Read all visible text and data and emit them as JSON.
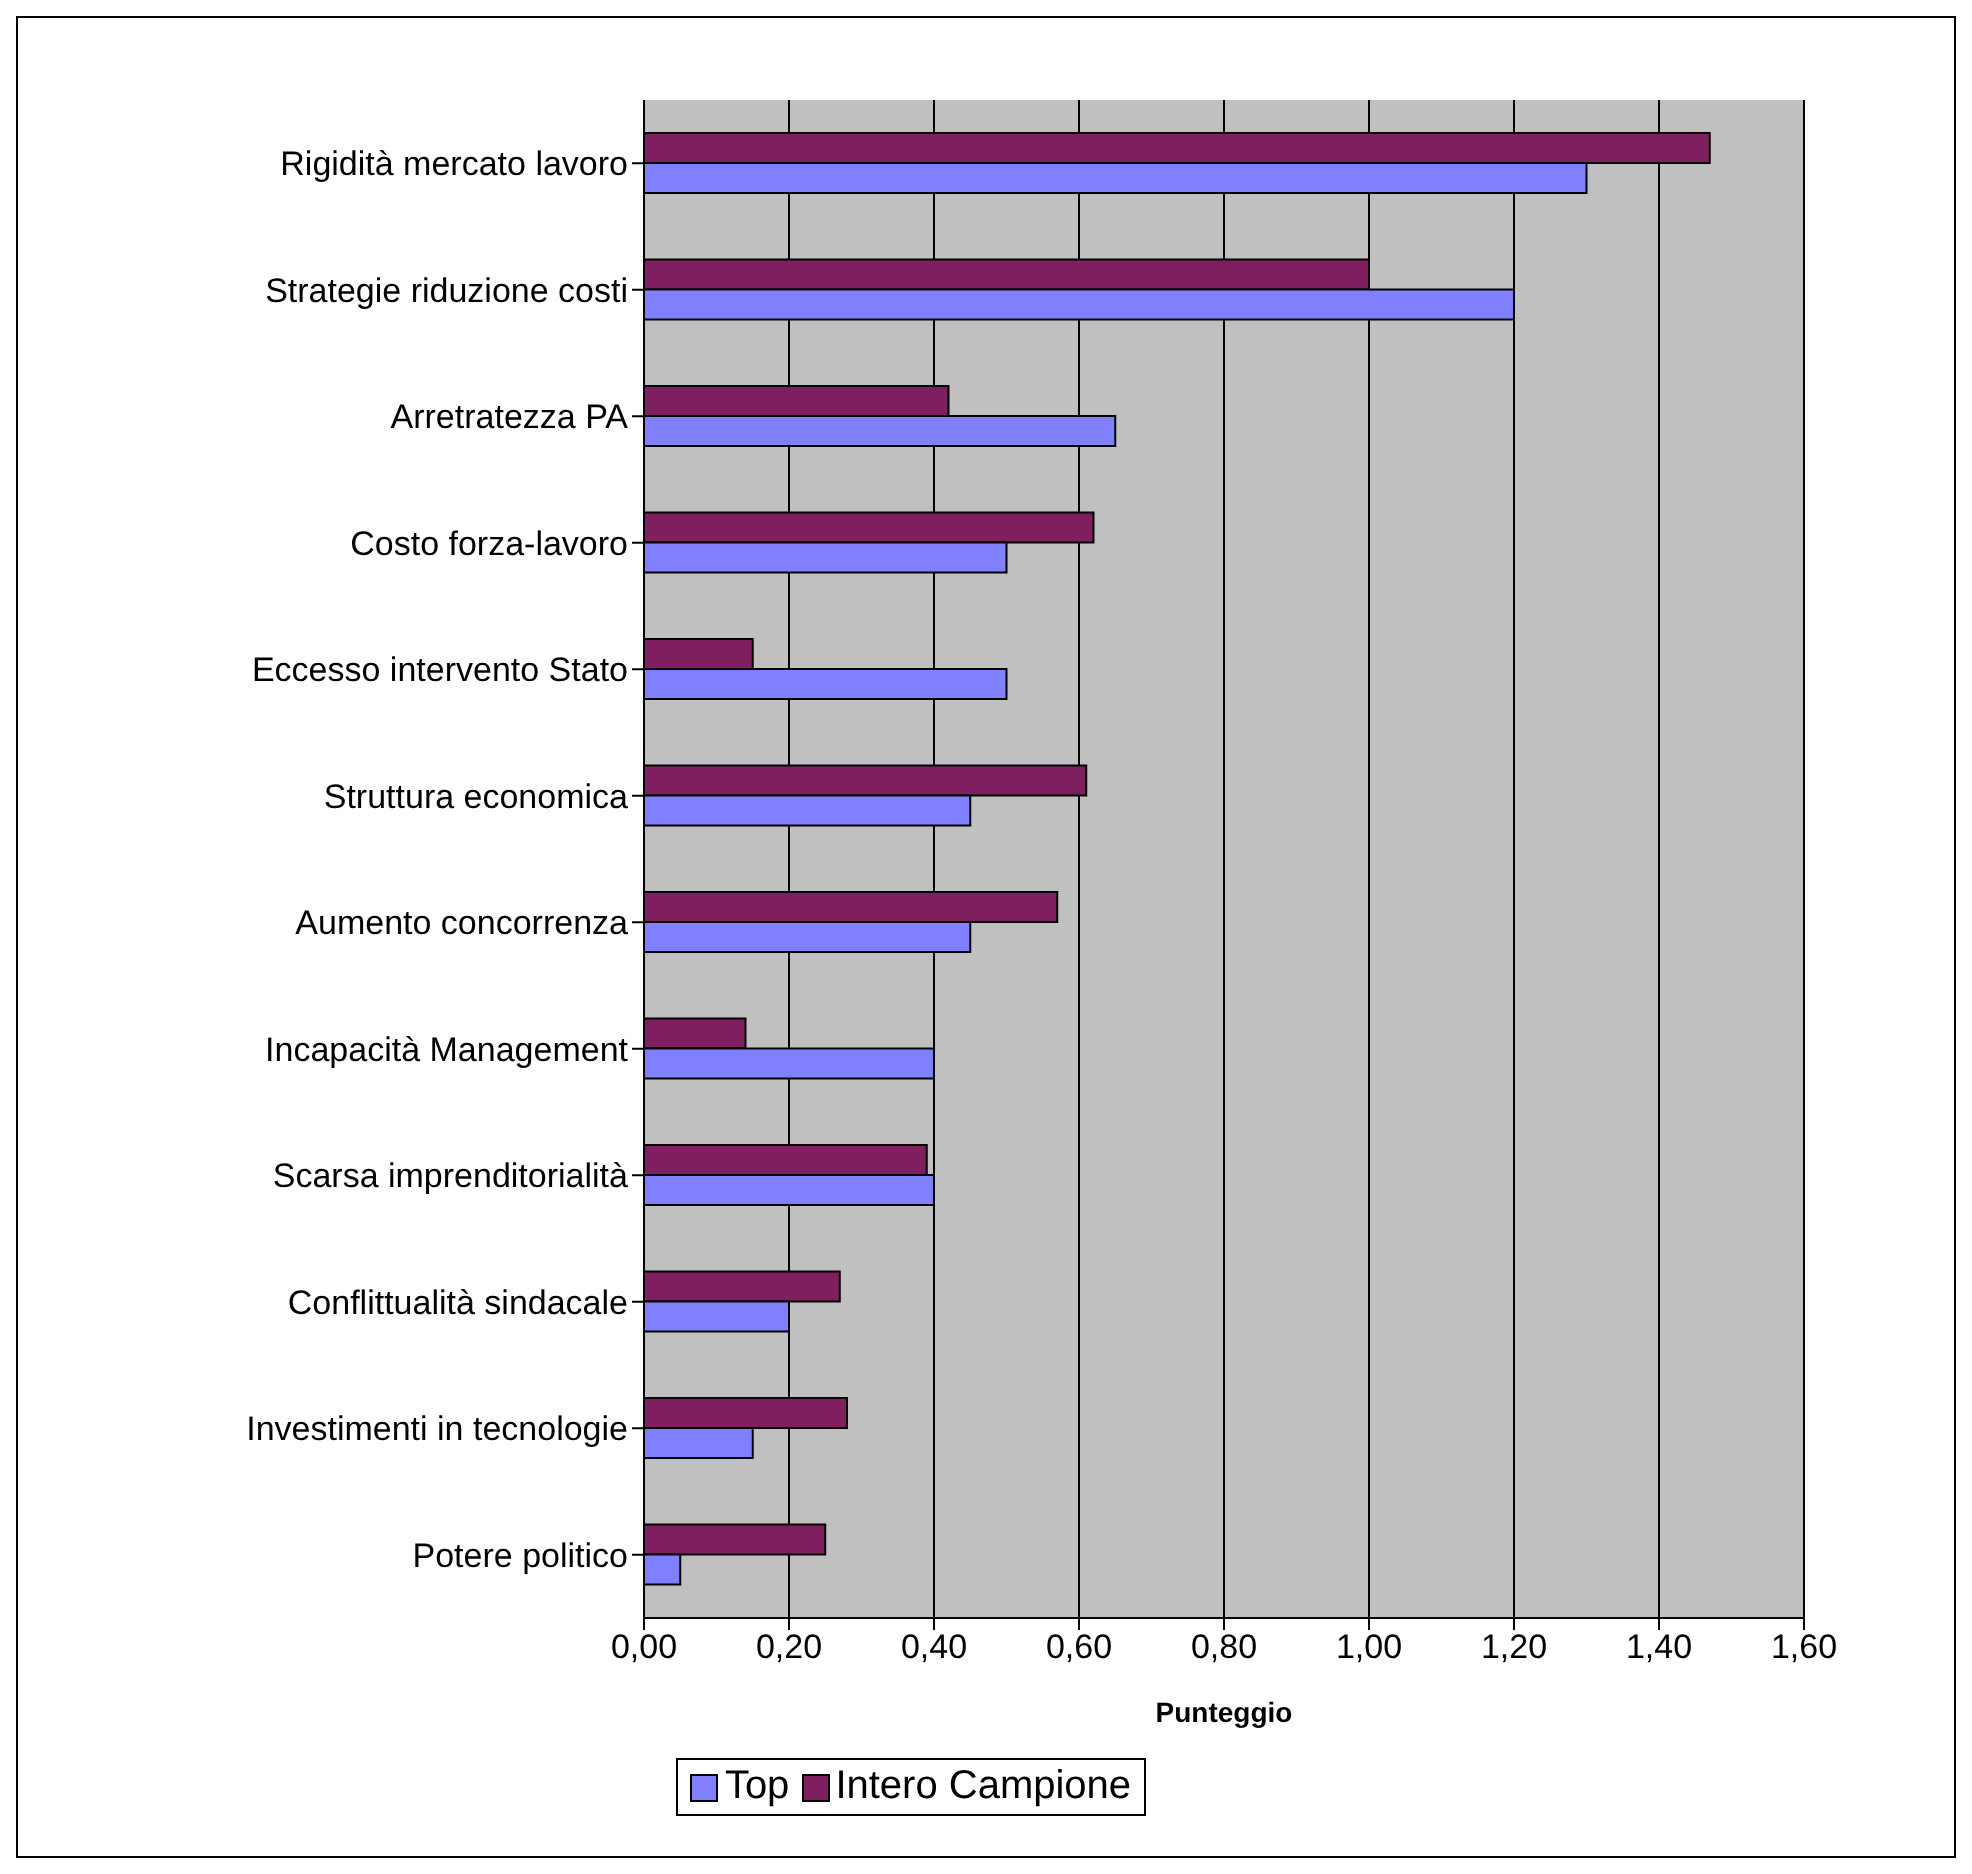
{
  "chart_data": {
    "type": "bar",
    "orientation": "horizontal",
    "xlabel": "Punteggio",
    "categories": [
      "Rigidità mercato lavoro",
      "Strategie riduzione costi",
      "Arretratezza PA",
      "Costo forza-lavoro",
      "Eccesso intervento Stato",
      "Struttura economica",
      "Aumento concorrenza",
      "Incapacità Management",
      "Scarsa imprenditorialità",
      "Conflittualità sindacale",
      "Investimenti in tecnologie",
      "Potere politico"
    ],
    "series": [
      {
        "name": "Top",
        "color": "#8080ff",
        "values": [
          1.3,
          1.2,
          0.65,
          0.5,
          0.5,
          0.45,
          0.45,
          0.4,
          0.4,
          0.2,
          0.15,
          0.05
        ]
      },
      {
        "name": "Intero Campione",
        "color": "#7f1f5f",
        "values": [
          1.47,
          1.0,
          0.42,
          0.62,
          0.15,
          0.61,
          0.57,
          0.14,
          0.39,
          0.27,
          0.28,
          0.25
        ]
      }
    ],
    "xlim": [
      0,
      1.6
    ],
    "xticks": [
      {
        "value": 0,
        "label": "0,00"
      },
      {
        "value": 0.2,
        "label": "0,20"
      },
      {
        "value": 0.4,
        "label": "0,40"
      },
      {
        "value": 0.6,
        "label": "0,60"
      },
      {
        "value": 0.8,
        "label": "0,80"
      },
      {
        "value": 1,
        "label": "1,00"
      },
      {
        "value": 1.2,
        "label": "1,20"
      },
      {
        "value": 1.4,
        "label": "1,40"
      },
      {
        "value": 1.6,
        "label": "1,60"
      }
    ],
    "grid": "x",
    "legend": "bottom"
  }
}
